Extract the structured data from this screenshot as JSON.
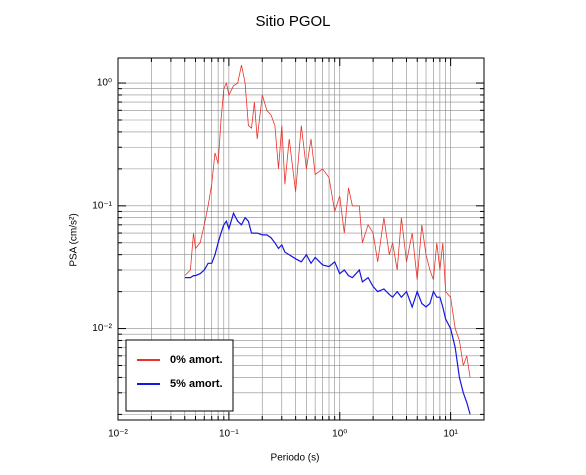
{
  "chart_data": {
    "type": "line",
    "title": "Sitio PGOL",
    "xlabel": "Periodo (s)",
    "ylabel": "PSA (cm/s²)",
    "xscale": "log",
    "yscale": "log",
    "grid": true,
    "legend": "lower left",
    "xlim": [
      0.01,
      20
    ],
    "ylim": [
      0.0018,
      1.6
    ],
    "xticks": [
      {
        "value": 0.01,
        "label": "10⁻²"
      },
      {
        "value": 0.1,
        "label": "10⁻¹"
      },
      {
        "value": 1,
        "label": "10⁰"
      },
      {
        "value": 10,
        "label": "10¹"
      }
    ],
    "yticks": [
      {
        "value": 0.01,
        "label": "10⁻²"
      },
      {
        "value": 0.1,
        "label": "10⁻¹"
      },
      {
        "value": 1,
        "label": "10⁰"
      }
    ],
    "x": [
      0.04,
      0.045,
      0.048,
      0.05,
      0.055,
      0.06,
      0.065,
      0.07,
      0.075,
      0.08,
      0.085,
      0.09,
      0.095,
      0.1,
      0.11,
      0.12,
      0.13,
      0.14,
      0.15,
      0.16,
      0.17,
      0.18,
      0.2,
      0.22,
      0.24,
      0.26,
      0.28,
      0.3,
      0.32,
      0.35,
      0.4,
      0.45,
      0.5,
      0.55,
      0.6,
      0.7,
      0.8,
      0.9,
      1.0,
      1.1,
      1.2,
      1.3,
      1.4,
      1.5,
      1.6,
      1.8,
      2.0,
      2.2,
      2.5,
      2.8,
      3.0,
      3.3,
      3.6,
      4.0,
      4.5,
      5.0,
      5.5,
      6.0,
      6.5,
      7.0,
      7.5,
      8.0,
      8.5,
      9.0,
      10,
      11,
      12,
      13,
      14,
      15
    ],
    "series": [
      {
        "name": "0% amort.",
        "color": "#e8322a",
        "values": [
          0.027,
          0.03,
          0.06,
          0.045,
          0.05,
          0.07,
          0.1,
          0.15,
          0.27,
          0.22,
          0.5,
          0.9,
          1.0,
          0.8,
          0.95,
          1.0,
          1.4,
          1.0,
          0.45,
          0.43,
          0.7,
          0.35,
          0.8,
          0.6,
          0.55,
          0.45,
          0.2,
          0.45,
          0.15,
          0.35,
          0.13,
          0.45,
          0.2,
          0.35,
          0.18,
          0.2,
          0.17,
          0.09,
          0.12,
          0.06,
          0.14,
          0.1,
          0.1,
          0.1,
          0.05,
          0.07,
          0.06,
          0.035,
          0.08,
          0.04,
          0.05,
          0.03,
          0.08,
          0.035,
          0.06,
          0.025,
          0.07,
          0.04,
          0.03,
          0.025,
          0.05,
          0.03,
          0.05,
          0.02,
          0.018,
          0.01,
          0.008,
          0.005,
          0.006,
          0.004
        ]
      },
      {
        "name": "5% amort.",
        "color": "#1515e0",
        "values": [
          0.026,
          0.026,
          0.027,
          0.027,
          0.028,
          0.03,
          0.034,
          0.034,
          0.04,
          0.05,
          0.06,
          0.07,
          0.075,
          0.065,
          0.087,
          0.075,
          0.07,
          0.08,
          0.075,
          0.06,
          0.06,
          0.06,
          0.058,
          0.058,
          0.055,
          0.05,
          0.045,
          0.048,
          0.042,
          0.04,
          0.037,
          0.035,
          0.04,
          0.034,
          0.038,
          0.033,
          0.032,
          0.035,
          0.028,
          0.03,
          0.027,
          0.026,
          0.028,
          0.03,
          0.024,
          0.026,
          0.022,
          0.02,
          0.021,
          0.019,
          0.018,
          0.02,
          0.018,
          0.02,
          0.015,
          0.02,
          0.016,
          0.015,
          0.016,
          0.02,
          0.018,
          0.018,
          0.015,
          0.012,
          0.01,
          0.007,
          0.004,
          0.003,
          0.0025,
          0.002
        ]
      }
    ]
  }
}
